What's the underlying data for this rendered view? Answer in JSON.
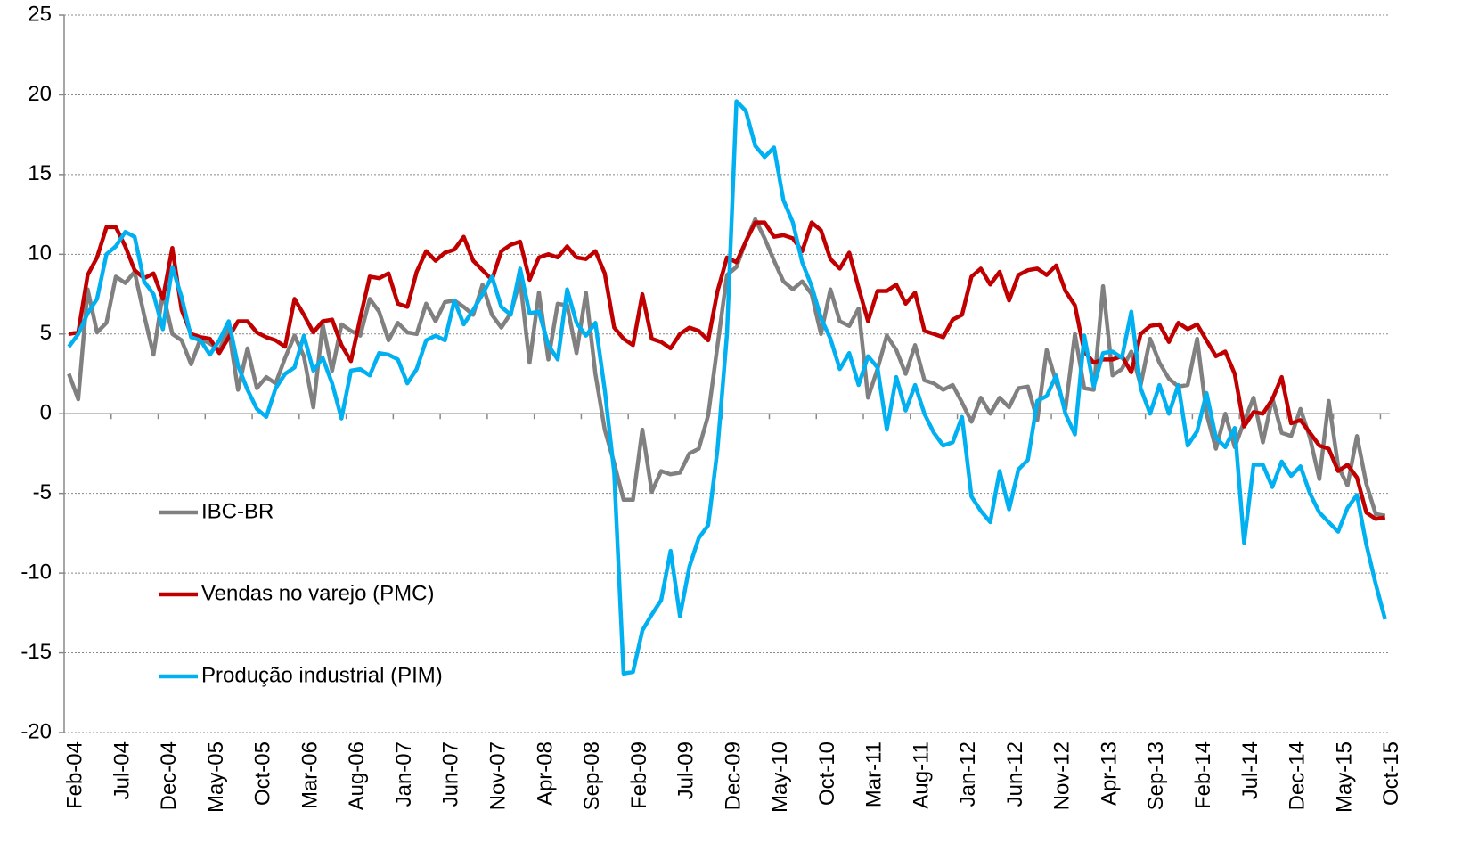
{
  "chart_data": {
    "type": "line",
    "categories": [
      "Feb-04",
      null,
      null,
      null,
      null,
      "Jul-04",
      null,
      null,
      null,
      null,
      "Dec-04",
      null,
      null,
      null,
      null,
      "May-05",
      null,
      null,
      null,
      null,
      "Oct-05",
      null,
      null,
      null,
      null,
      "Mar-06",
      null,
      null,
      null,
      null,
      "Aug-06",
      null,
      null,
      null,
      null,
      "Jan-07",
      null,
      null,
      null,
      null,
      "Jun-07",
      null,
      null,
      null,
      null,
      "Nov-07",
      null,
      null,
      null,
      null,
      "Apr-08",
      null,
      null,
      null,
      null,
      "Sep-08",
      null,
      null,
      null,
      null,
      "Feb-09",
      null,
      null,
      null,
      null,
      "Jul-09",
      null,
      null,
      null,
      null,
      "Dec-09",
      null,
      null,
      null,
      null,
      "May-10",
      null,
      null,
      null,
      null,
      "Oct-10",
      null,
      null,
      null,
      null,
      "Mar-11",
      null,
      null,
      null,
      null,
      "Aug-11",
      null,
      null,
      null,
      null,
      "Jan-12",
      null,
      null,
      null,
      null,
      "Jun-12",
      null,
      null,
      null,
      null,
      "Nov-12",
      null,
      null,
      null,
      null,
      "Apr-13",
      null,
      null,
      null,
      null,
      "Sep-13",
      null,
      null,
      null,
      null,
      "Feb-14",
      null,
      null,
      null,
      null,
      "Jul-14",
      null,
      null,
      null,
      null,
      "Dec-14",
      null,
      null,
      null,
      null,
      "May-15",
      null,
      null,
      null,
      null,
      "Oct-15"
    ],
    "series": [
      {
        "name": "IBC-BR",
        "color": "#808080",
        "values": [
          2.5,
          0.9,
          7.8,
          5.1,
          5.7,
          8.6,
          8.2,
          8.9,
          6.2,
          3.7,
          7.6,
          5.0,
          4.6,
          3.1,
          4.7,
          4.4,
          4.0,
          5.3,
          1.5,
          4.1,
          1.6,
          2.3,
          1.9,
          3.5,
          4.9,
          3.6,
          0.4,
          5.6,
          2.7,
          5.6,
          5.2,
          4.9,
          7.2,
          6.4,
          4.6,
          5.7,
          5.1,
          5.0,
          6.9,
          5.8,
          7.0,
          7.1,
          6.7,
          6.2,
          8.1,
          6.2,
          5.4,
          6.3,
          8.4,
          3.2,
          7.6,
          3.4,
          6.9,
          6.8,
          3.8,
          7.6,
          2.5,
          -1.0,
          -3.1,
          -5.4,
          -5.4,
          -1.0,
          -4.9,
          -3.6,
          -3.8,
          -3.7,
          -2.5,
          -2.2,
          -0.1,
          4.3,
          8.7,
          9.2,
          10.8,
          12.2,
          11.0,
          9.6,
          8.3,
          7.8,
          8.3,
          7.5,
          5.0,
          7.8,
          5.8,
          5.5,
          6.6,
          1.0,
          2.8,
          4.9,
          4.0,
          2.5,
          4.3,
          2.1,
          1.9,
          1.5,
          1.8,
          0.7,
          -0.5,
          1.0,
          0.0,
          1.0,
          0.4,
          1.6,
          1.7,
          -0.4,
          4.0,
          2.0,
          0.3,
          5.0,
          1.6,
          1.5,
          8.0,
          2.4,
          2.8,
          3.9,
          1.8,
          4.7,
          3.2,
          2.2,
          1.7,
          1.8,
          4.7,
          0.0,
          -2.2,
          0.0,
          -2.1,
          -0.5,
          1.0,
          -1.8,
          1.0,
          -1.2,
          -1.4,
          0.3,
          -1.5,
          -4.1,
          0.8,
          -3.3,
          -4.5,
          -1.4,
          -4.4,
          -6.3,
          -6.4
        ]
      },
      {
        "name": "Vendas no varejo (PMC)",
        "color": "#c00000",
        "values": [
          5.0,
          5.1,
          8.7,
          9.8,
          11.7,
          11.7,
          10.5,
          9.0,
          8.5,
          8.8,
          7.2,
          10.4,
          6.5,
          5.0,
          4.8,
          4.7,
          3.8,
          4.8,
          5.8,
          5.8,
          5.1,
          4.8,
          4.6,
          4.2,
          7.2,
          6.2,
          5.1,
          5.8,
          5.9,
          4.3,
          3.3,
          6.0,
          8.6,
          8.5,
          8.8,
          6.9,
          6.7,
          8.9,
          10.2,
          9.6,
          10.1,
          10.3,
          11.1,
          9.6,
          9.0,
          8.4,
          10.2,
          10.6,
          10.8,
          8.4,
          9.8,
          10.0,
          9.8,
          10.5,
          9.8,
          9.7,
          10.2,
          8.8,
          5.4,
          4.7,
          4.3,
          7.5,
          4.7,
          4.5,
          4.1,
          5.0,
          5.4,
          5.2,
          4.6,
          7.7,
          9.8,
          9.5,
          10.8,
          12.0,
          12.0,
          11.1,
          11.2,
          11.0,
          10.2,
          12.0,
          11.5,
          9.7,
          9.1,
          10.1,
          7.9,
          5.8,
          7.7,
          7.7,
          8.1,
          6.9,
          7.6,
          5.2,
          5.0,
          4.8,
          5.9,
          6.2,
          8.6,
          9.1,
          8.1,
          8.9,
          7.1,
          8.7,
          9.0,
          9.1,
          8.7,
          9.3,
          7.7,
          6.8,
          3.9,
          3.2,
          3.4,
          3.4,
          3.6,
          2.6,
          5.0,
          5.5,
          5.6,
          4.5,
          5.7,
          5.3,
          5.6,
          4.6,
          3.6,
          3.9,
          2.5,
          -0.8,
          0.1,
          0.0,
          0.9,
          2.3,
          -0.6,
          -0.4,
          -1.2,
          -2.0,
          -2.2,
          -3.6,
          -3.2,
          -4.0,
          -6.2,
          -6.6,
          -6.5
        ]
      },
      {
        "name": "Produção industrial (PIM)",
        "color": "#00b0f0",
        "values": [
          4.2,
          5.0,
          6.3,
          7.2,
          10.0,
          10.5,
          11.4,
          11.1,
          8.3,
          7.5,
          5.3,
          9.2,
          7.3,
          4.8,
          4.6,
          3.7,
          4.6,
          5.8,
          3.0,
          1.5,
          0.3,
          -0.2,
          1.6,
          2.5,
          2.9,
          4.9,
          2.7,
          3.5,
          1.9,
          -0.3,
          2.7,
          2.8,
          2.4,
          3.8,
          3.7,
          3.4,
          1.9,
          2.8,
          4.6,
          4.9,
          4.6,
          7.1,
          5.6,
          6.5,
          7.5,
          8.6,
          6.7,
          6.2,
          9.1,
          6.3,
          6.4,
          4.3,
          3.4,
          7.8,
          5.7,
          4.9,
          5.7,
          1.5,
          -3.7,
          -16.3,
          -16.2,
          -13.6,
          -12.6,
          -11.7,
          -8.6,
          -12.7,
          -9.6,
          -7.8,
          -7.0,
          -2.2,
          5.0,
          19.6,
          19.0,
          16.8,
          16.1,
          16.7,
          13.4,
          12.0,
          9.5,
          8.0,
          6.0,
          4.7,
          2.8,
          3.8,
          1.8,
          3.6,
          2.9,
          -1.0,
          2.3,
          0.2,
          1.8,
          0.0,
          -1.2,
          -2.0,
          -1.8,
          -0.2,
          -5.2,
          -6.1,
          -6.8,
          -3.6,
          -6.0,
          -3.5,
          -2.9,
          0.8,
          1.1,
          2.4,
          0.0,
          -1.3,
          4.9,
          1.7,
          3.8,
          3.9,
          3.5,
          6.4,
          1.6,
          0.0,
          1.8,
          0.0,
          1.8,
          -2.0,
          -1.1,
          1.3,
          -1.5,
          -2.1,
          -0.9,
          -8.1,
          -3.2,
          -3.2,
          -4.6,
          -3.0,
          -3.9,
          -3.3,
          -5.0,
          -6.2,
          -6.8,
          -7.4,
          -5.9,
          -5.1,
          -8.2,
          -10.7,
          -12.9
        ]
      }
    ],
    "ylim": [
      -20,
      25
    ],
    "yticks": [
      -20,
      -15,
      -10,
      -5,
      0,
      5,
      10,
      15,
      20,
      25
    ],
    "grid": true
  }
}
